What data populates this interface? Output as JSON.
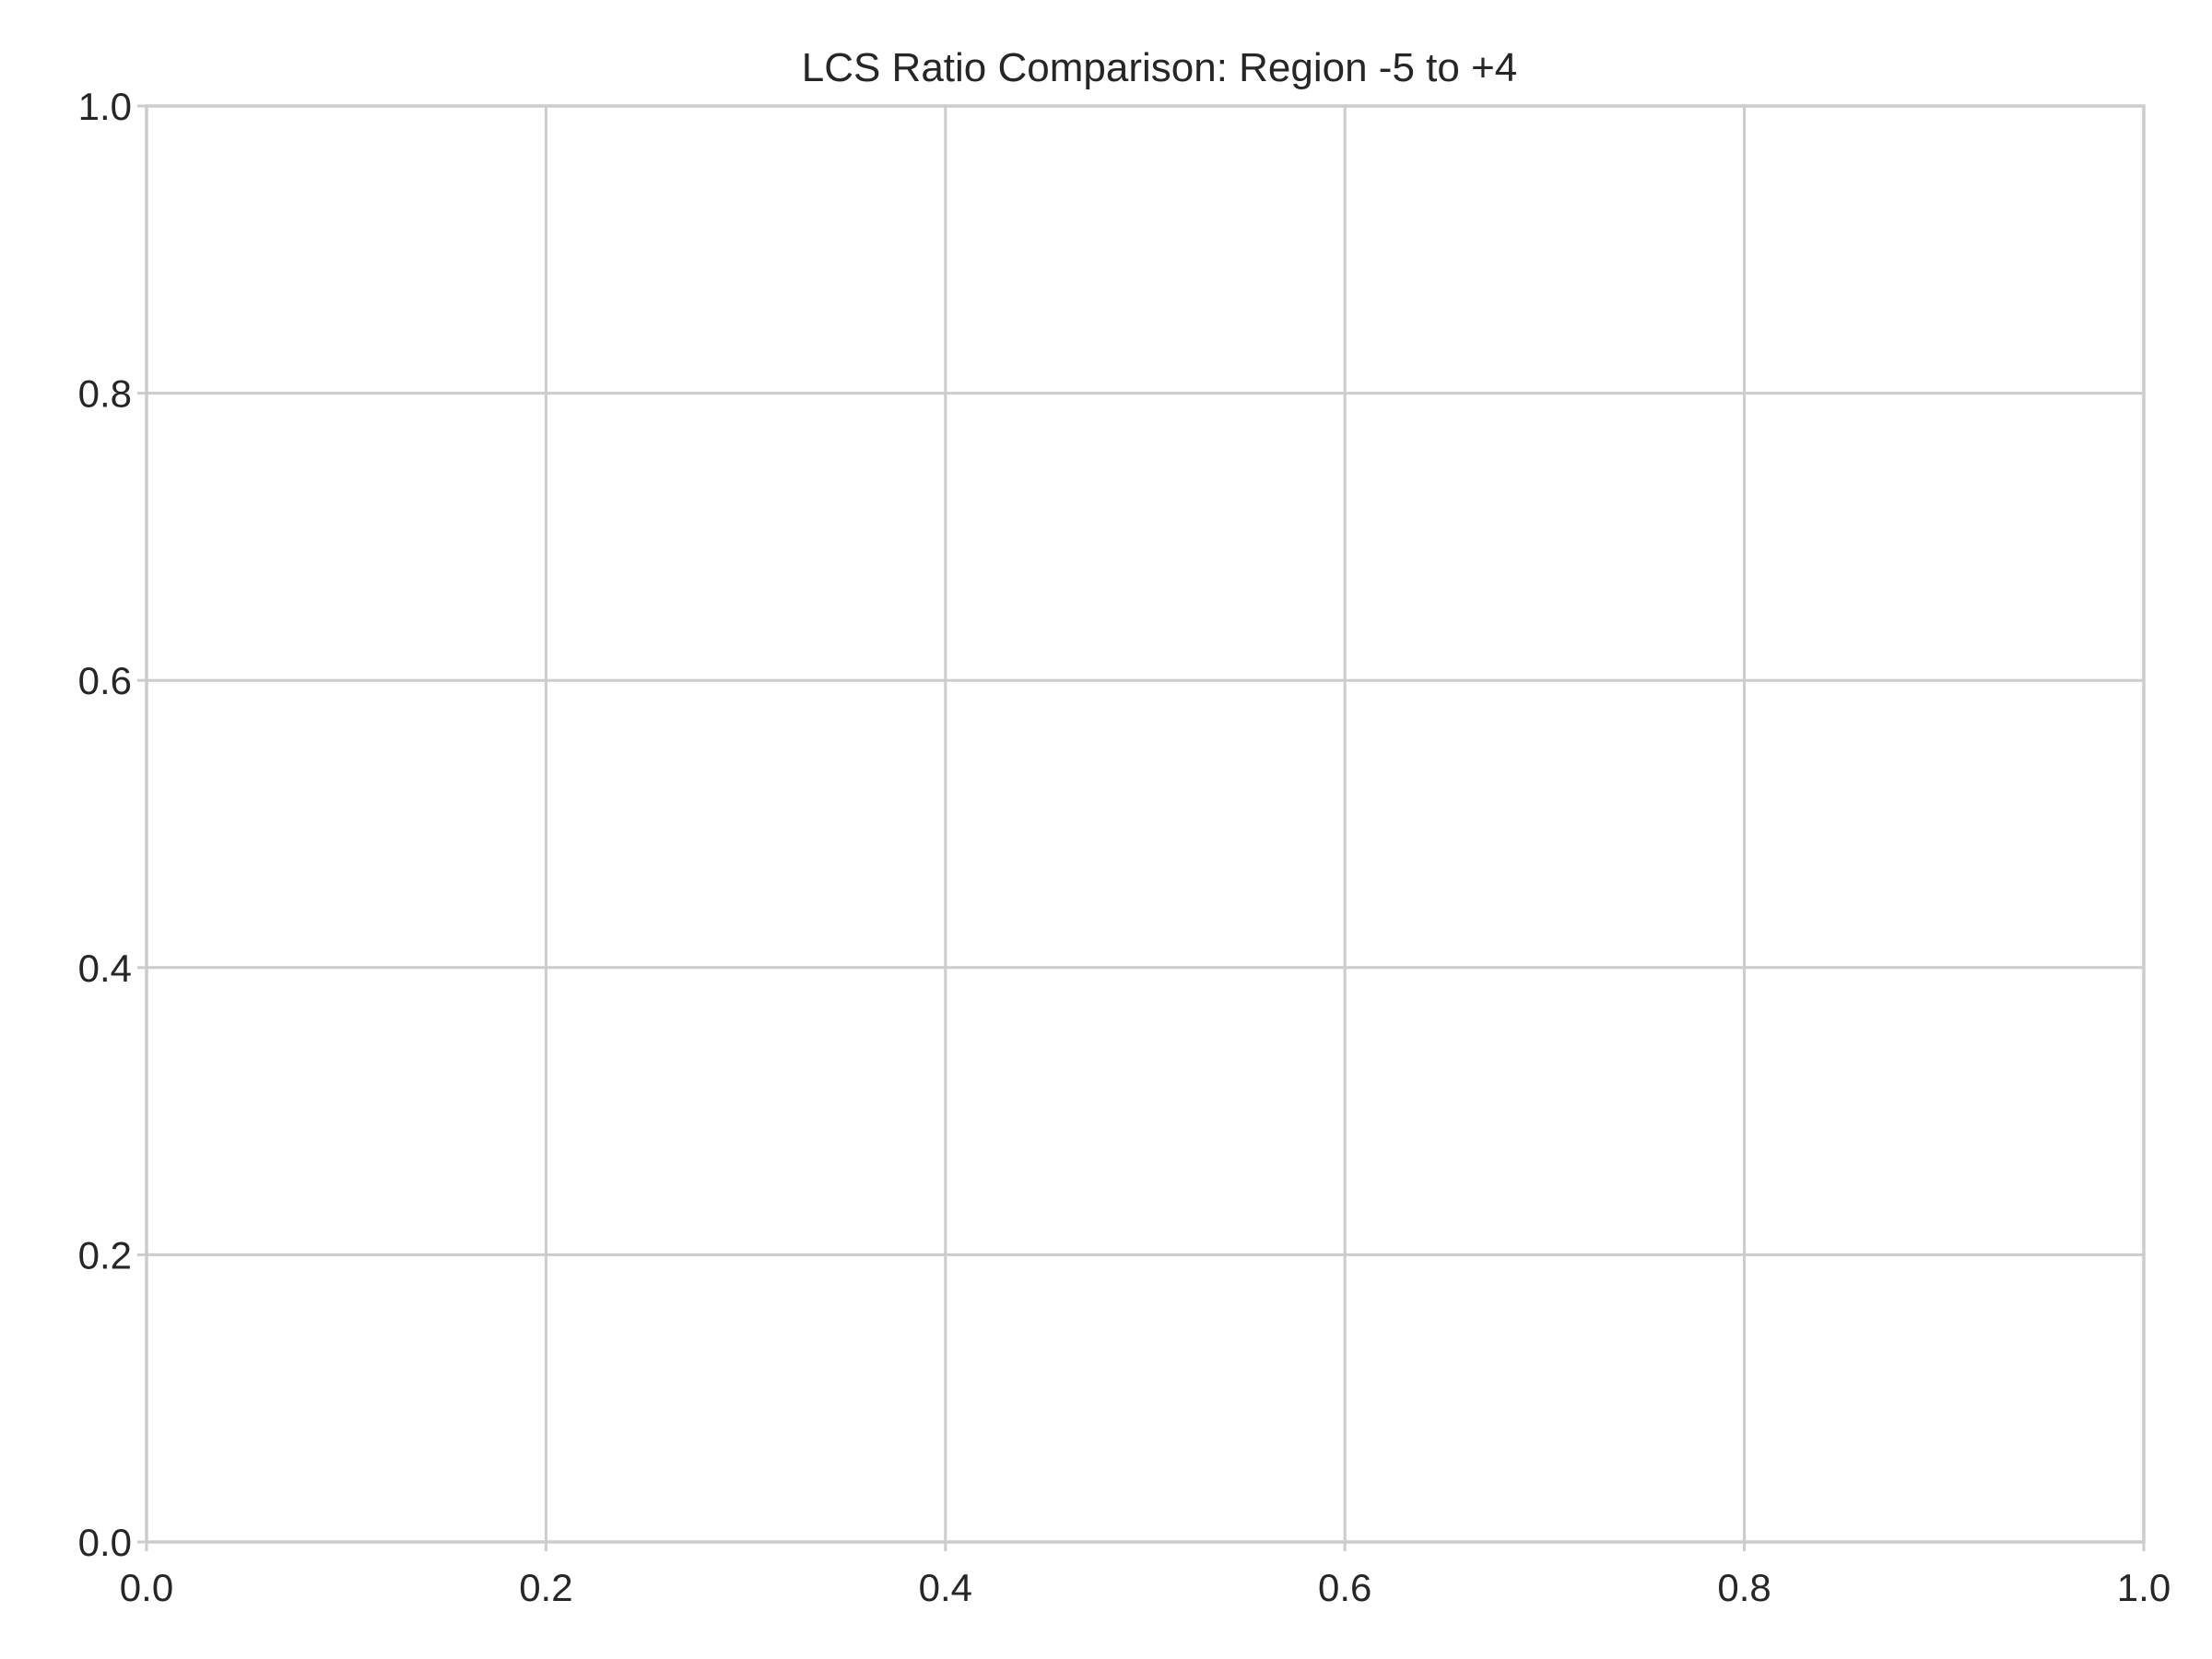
{
  "chart_data": {
    "type": "line",
    "title": "LCS Ratio Comparison: Region -5 to +4",
    "xlabel": "",
    "ylabel": "",
    "xlim": [
      0.0,
      1.0
    ],
    "ylim": [
      0.0,
      1.0
    ],
    "x_ticks": [
      "0.0",
      "0.2",
      "0.4",
      "0.6",
      "0.8",
      "1.0"
    ],
    "y_ticks": [
      "0.0",
      "0.2",
      "0.4",
      "0.6",
      "0.8",
      "1.0"
    ],
    "series": [],
    "grid": true,
    "legend": "none"
  }
}
